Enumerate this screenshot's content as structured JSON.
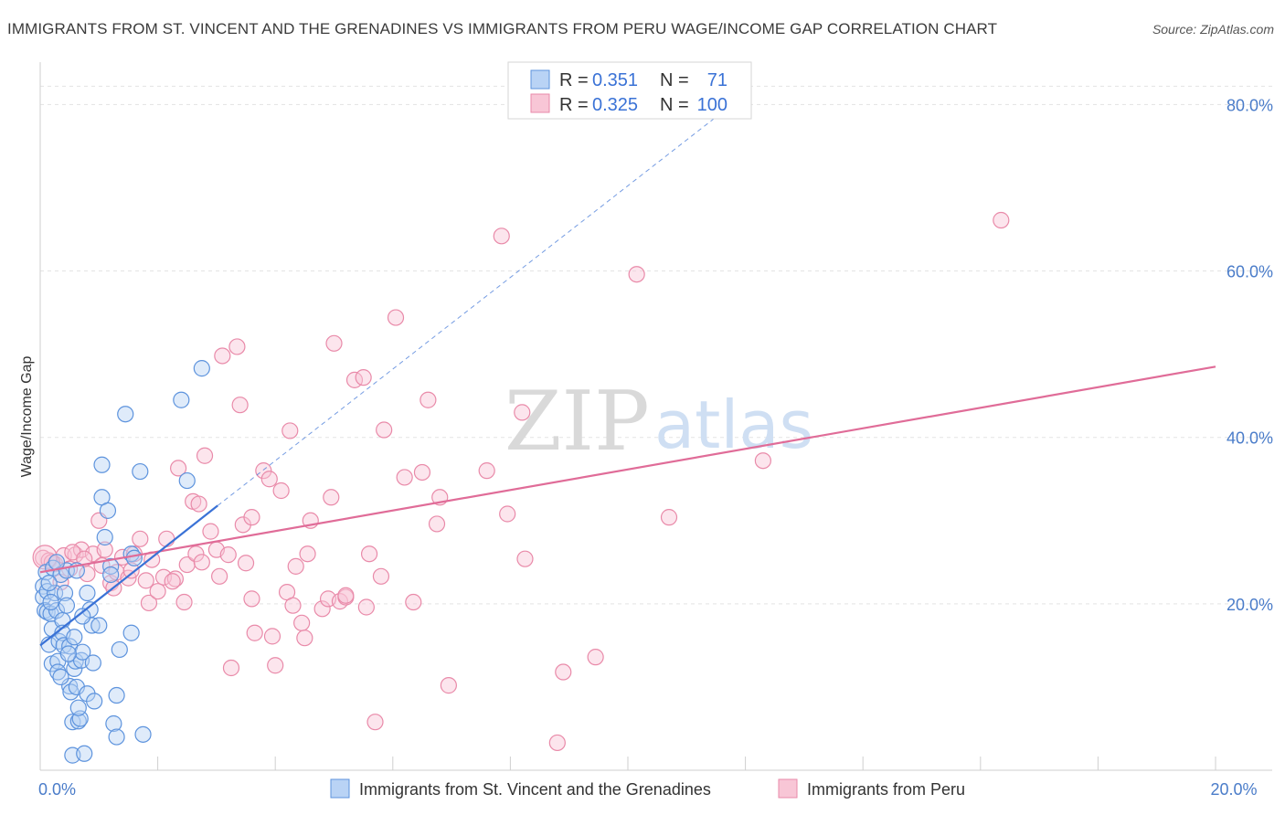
{
  "title": "IMMIGRANTS FROM ST. VINCENT AND THE GRENADINES VS IMMIGRANTS FROM PERU WAGE/INCOME GAP CORRELATION CHART",
  "source": "Source: ZipAtlas.com",
  "watermark": {
    "zip": "ZIP",
    "atlas": "atlas"
  },
  "colors": {
    "blue_fill": "#b9d3f5",
    "blue_stroke": "#5d93dd",
    "blue_line": "#3a72d6",
    "pink_fill": "#f8c6d6",
    "pink_stroke": "#e98aa9",
    "pink_line": "#e06c98",
    "grid": "#e3e3e3",
    "tick_text": "#4a7cc9"
  },
  "legend": {
    "rows": [
      {
        "r_label": "R = ",
        "r_value": "0.351",
        "n_label": "N = ",
        "n_value": "71",
        "series": "blue"
      },
      {
        "r_label": "R = ",
        "r_value": "0.325",
        "n_label": "N = ",
        "n_value": "100",
        "series": "pink"
      }
    ]
  },
  "chart_data": {
    "type": "scatter",
    "title": "IMMIGRANTS FROM ST. VINCENT AND THE GRENADINES VS IMMIGRANTS FROM PERU WAGE/INCOME GAP CORRELATION CHART",
    "xlabel": "",
    "ylabel": "Wage/Income Gap",
    "xlim": [
      0,
      20
    ],
    "ylim": [
      0,
      84
    ],
    "x_ticks": [
      {
        "v": 0,
        "label": "0.0%"
      },
      {
        "v": 20,
        "label": "20.0%"
      }
    ],
    "y_ticks": [
      {
        "v": 20,
        "label": "20.0%"
      },
      {
        "v": 40,
        "label": "40.0%"
      },
      {
        "v": 60,
        "label": "60.0%"
      },
      {
        "v": 80,
        "label": "80.0%"
      }
    ],
    "grid": true,
    "legend_position": "top-center",
    "series": [
      {
        "name": "Immigrants from St. Vincent and the Grenadines",
        "color": "blue",
        "trend": {
          "x": [
            0,
            3.02
          ],
          "y": [
            15.0,
            31.8
          ]
        },
        "trend_dashed": {
          "x": [
            3.02,
            11.5
          ],
          "y": [
            31.8,
            78.5
          ]
        },
        "points": [
          [
            0.05,
            22.1
          ],
          [
            0.05,
            20.8
          ],
          [
            0.08,
            19.2
          ],
          [
            0.1,
            23.8
          ],
          [
            0.12,
            21.5
          ],
          [
            0.12,
            19.0
          ],
          [
            0.15,
            15.1
          ],
          [
            0.18,
            18.8
          ],
          [
            0.2,
            17.0
          ],
          [
            0.2,
            12.8
          ],
          [
            0.22,
            24.3
          ],
          [
            0.25,
            21.3
          ],
          [
            0.28,
            19.2
          ],
          [
            0.3,
            13.1
          ],
          [
            0.3,
            11.8
          ],
          [
            0.32,
            15.5
          ],
          [
            0.35,
            23.5
          ],
          [
            0.38,
            18.0
          ],
          [
            0.38,
            16.5
          ],
          [
            0.4,
            15.0
          ],
          [
            0.42,
            21.3
          ],
          [
            0.45,
            24.0
          ],
          [
            0.45,
            19.8
          ],
          [
            0.5,
            14.9
          ],
          [
            0.5,
            10.1
          ],
          [
            0.52,
            9.4
          ],
          [
            0.55,
            5.8
          ],
          [
            0.55,
            1.8
          ],
          [
            0.58,
            12.2
          ],
          [
            0.6,
            13.1
          ],
          [
            0.62,
            24.0
          ],
          [
            0.62,
            10.0
          ],
          [
            0.65,
            5.9
          ],
          [
            0.68,
            6.2
          ],
          [
            0.7,
            13.2
          ],
          [
            0.72,
            14.2
          ],
          [
            0.75,
            2.0
          ],
          [
            0.8,
            21.3
          ],
          [
            0.8,
            9.2
          ],
          [
            0.85,
            19.3
          ],
          [
            0.88,
            17.4
          ],
          [
            0.9,
            12.9
          ],
          [
            0.92,
            8.3
          ],
          [
            1.0,
            17.4
          ],
          [
            1.05,
            32.8
          ],
          [
            1.05,
            36.7
          ],
          [
            1.15,
            31.2
          ],
          [
            1.2,
            24.5
          ],
          [
            1.25,
            5.6
          ],
          [
            1.3,
            4.0
          ],
          [
            1.3,
            9.0
          ],
          [
            1.35,
            14.5
          ],
          [
            1.45,
            42.8
          ],
          [
            1.55,
            26.0
          ],
          [
            1.55,
            16.5
          ],
          [
            1.7,
            35.9
          ],
          [
            1.75,
            4.3
          ],
          [
            2.4,
            44.5
          ],
          [
            2.5,
            34.8
          ],
          [
            2.75,
            48.3
          ],
          [
            1.2,
            23.5
          ],
          [
            1.6,
            25.5
          ],
          [
            0.15,
            22.5
          ],
          [
            0.35,
            11.2
          ],
          [
            0.48,
            14.0
          ],
          [
            0.65,
            7.5
          ],
          [
            0.28,
            25.0
          ],
          [
            1.1,
            28.0
          ],
          [
            0.72,
            18.5
          ],
          [
            0.18,
            20.2
          ],
          [
            0.58,
            16.0
          ]
        ]
      },
      {
        "name": "Immigrants from Peru",
        "color": "pink",
        "trend": {
          "x": [
            0,
            20
          ],
          "y": [
            23.8,
            48.5
          ]
        },
        "points": [
          [
            0.05,
            25.5
          ],
          [
            0.15,
            25.2
          ],
          [
            0.25,
            24.8
          ],
          [
            0.35,
            22.6
          ],
          [
            0.4,
            25.8
          ],
          [
            0.5,
            24.2
          ],
          [
            0.6,
            25.9
          ],
          [
            0.7,
            26.5
          ],
          [
            0.8,
            23.6
          ],
          [
            0.9,
            26.0
          ],
          [
            1.0,
            30.0
          ],
          [
            1.1,
            26.5
          ],
          [
            1.2,
            22.5
          ],
          [
            1.3,
            23.8
          ],
          [
            1.4,
            25.6
          ],
          [
            1.5,
            23.1
          ],
          [
            1.6,
            26.0
          ],
          [
            1.7,
            27.8
          ],
          [
            1.8,
            22.8
          ],
          [
            1.85,
            20.1
          ],
          [
            1.9,
            25.3
          ],
          [
            2.0,
            21.5
          ],
          [
            2.1,
            23.2
          ],
          [
            2.15,
            27.8
          ],
          [
            2.3,
            23.0
          ],
          [
            2.35,
            36.3
          ],
          [
            2.45,
            20.2
          ],
          [
            2.5,
            24.7
          ],
          [
            2.6,
            32.3
          ],
          [
            2.65,
            26.0
          ],
          [
            2.7,
            32.0
          ],
          [
            2.75,
            25.0
          ],
          [
            2.8,
            37.8
          ],
          [
            2.9,
            28.7
          ],
          [
            3.0,
            26.5
          ],
          [
            3.05,
            23.3
          ],
          [
            3.1,
            49.8
          ],
          [
            3.2,
            25.9
          ],
          [
            3.25,
            12.3
          ],
          [
            3.35,
            50.9
          ],
          [
            3.4,
            43.9
          ],
          [
            3.45,
            29.5
          ],
          [
            3.5,
            24.9
          ],
          [
            3.6,
            20.6
          ],
          [
            3.65,
            16.5
          ],
          [
            3.8,
            36.0
          ],
          [
            3.9,
            35.0
          ],
          [
            3.95,
            16.1
          ],
          [
            4.0,
            12.6
          ],
          [
            4.1,
            33.6
          ],
          [
            4.2,
            21.4
          ],
          [
            4.25,
            40.8
          ],
          [
            4.35,
            24.5
          ],
          [
            4.45,
            17.7
          ],
          [
            4.5,
            15.9
          ],
          [
            4.55,
            26.0
          ],
          [
            4.6,
            30.0
          ],
          [
            4.8,
            19.4
          ],
          [
            4.9,
            20.6
          ],
          [
            4.95,
            32.8
          ],
          [
            5.0,
            51.3
          ],
          [
            5.1,
            20.3
          ],
          [
            5.2,
            20.8
          ],
          [
            5.35,
            46.9
          ],
          [
            5.5,
            47.2
          ],
          [
            5.55,
            19.6
          ],
          [
            5.6,
            26.0
          ],
          [
            5.7,
            5.8
          ],
          [
            5.8,
            23.3
          ],
          [
            5.85,
            40.9
          ],
          [
            6.05,
            54.4
          ],
          [
            6.2,
            35.2
          ],
          [
            6.35,
            20.2
          ],
          [
            6.5,
            35.8
          ],
          [
            6.6,
            44.5
          ],
          [
            6.75,
            29.6
          ],
          [
            6.8,
            32.8
          ],
          [
            6.95,
            10.2
          ],
          [
            7.6,
            36.0
          ],
          [
            7.85,
            64.2
          ],
          [
            7.95,
            30.8
          ],
          [
            8.2,
            43.0
          ],
          [
            8.25,
            25.4
          ],
          [
            8.8,
            3.3
          ],
          [
            8.9,
            11.8
          ],
          [
            9.45,
            13.6
          ],
          [
            10.15,
            59.6
          ],
          [
            10.7,
            30.4
          ],
          [
            12.3,
            37.2
          ],
          [
            16.35,
            66.1
          ],
          [
            0.2,
            25.0
          ],
          [
            0.55,
            26.2
          ],
          [
            0.75,
            25.4
          ],
          [
            1.05,
            24.6
          ],
          [
            1.25,
            21.9
          ],
          [
            1.55,
            24.0
          ],
          [
            2.25,
            22.7
          ],
          [
            3.6,
            30.4
          ],
          [
            4.3,
            19.8
          ],
          [
            5.2,
            21.0
          ]
        ]
      }
    ]
  }
}
